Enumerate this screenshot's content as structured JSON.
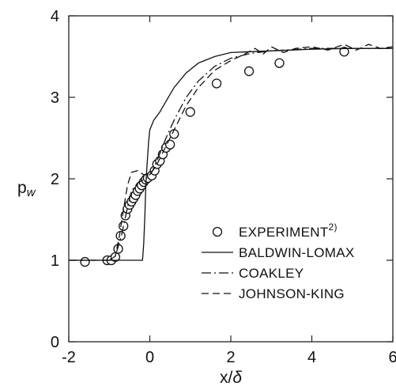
{
  "chart_data": {
    "type": "line",
    "xlabel": "x/δ",
    "ylabel": "p_w",
    "xlim": [
      -2,
      6
    ],
    "ylim": [
      0,
      4
    ],
    "x_ticks": [
      "-2",
      "0",
      "2",
      "4",
      "6"
    ],
    "y_ticks": [
      "0",
      "1",
      "2",
      "3",
      "4"
    ],
    "grid": false,
    "legend_position": "lower-right",
    "series": [
      {
        "name": "EXPERIMENT",
        "name_superscript": "2)",
        "style": "open-circle",
        "points": [
          [
            -1.6,
            0.98
          ],
          [
            -1.05,
            1.0
          ],
          [
            -0.95,
            1.0
          ],
          [
            -0.85,
            1.04
          ],
          [
            -0.78,
            1.14
          ],
          [
            -0.72,
            1.3
          ],
          [
            -0.65,
            1.42
          ],
          [
            -0.6,
            1.55
          ],
          [
            -0.55,
            1.63
          ],
          [
            -0.5,
            1.68
          ],
          [
            -0.45,
            1.72
          ],
          [
            -0.4,
            1.76
          ],
          [
            -0.35,
            1.8
          ],
          [
            -0.3,
            1.85
          ],
          [
            -0.25,
            1.88
          ],
          [
            -0.2,
            1.92
          ],
          [
            -0.15,
            1.96
          ],
          [
            -0.1,
            1.99
          ],
          [
            -0.05,
            2.01
          ],
          [
            0.05,
            2.04
          ],
          [
            0.12,
            2.1
          ],
          [
            0.18,
            2.18
          ],
          [
            0.25,
            2.22
          ],
          [
            0.32,
            2.3
          ],
          [
            0.4,
            2.38
          ],
          [
            0.5,
            2.42
          ],
          [
            0.6,
            2.55
          ],
          [
            1.0,
            2.82
          ],
          [
            1.65,
            3.17
          ],
          [
            2.45,
            3.32
          ],
          [
            3.2,
            3.42
          ],
          [
            4.8,
            3.56
          ]
        ]
      },
      {
        "name": "BALDWIN-LOMAX",
        "style": "solid",
        "points": [
          [
            -2,
            1.0
          ],
          [
            -1.0,
            1.0
          ],
          [
            -0.5,
            1.0
          ],
          [
            -0.18,
            1.0
          ],
          [
            -0.15,
            1.2
          ],
          [
            -0.12,
            1.55
          ],
          [
            -0.1,
            1.9
          ],
          [
            -0.07,
            2.15
          ],
          [
            -0.03,
            2.45
          ],
          [
            0.0,
            2.6
          ],
          [
            0.1,
            2.72
          ],
          [
            0.25,
            2.82
          ],
          [
            0.4,
            2.95
          ],
          [
            0.6,
            3.12
          ],
          [
            0.9,
            3.3
          ],
          [
            1.2,
            3.42
          ],
          [
            1.6,
            3.5
          ],
          [
            2.0,
            3.55
          ],
          [
            2.5,
            3.56
          ],
          [
            3.0,
            3.57
          ],
          [
            4.0,
            3.59
          ],
          [
            5.0,
            3.6
          ],
          [
            6.0,
            3.6
          ]
        ]
      },
      {
        "name": "COAKLEY",
        "style": "dash-dot",
        "points": [
          [
            -2,
            1.0
          ],
          [
            -1.0,
            1.0
          ],
          [
            -0.85,
            1.05
          ],
          [
            -0.7,
            1.3
          ],
          [
            -0.55,
            1.65
          ],
          [
            -0.45,
            1.85
          ],
          [
            -0.3,
            1.95
          ],
          [
            -0.1,
            2.0
          ],
          [
            0.05,
            2.08
          ],
          [
            0.2,
            2.25
          ],
          [
            0.4,
            2.5
          ],
          [
            0.6,
            2.72
          ],
          [
            0.9,
            3.0
          ],
          [
            1.2,
            3.2
          ],
          [
            1.6,
            3.38
          ],
          [
            2.0,
            3.48
          ],
          [
            2.5,
            3.54
          ],
          [
            3.0,
            3.57
          ],
          [
            4.0,
            3.6
          ],
          [
            5.0,
            3.6
          ],
          [
            6.0,
            3.6
          ]
        ]
      },
      {
        "name": "JOHNSON-KING",
        "style": "dashed",
        "points": [
          [
            -2,
            1.0
          ],
          [
            -1.0,
            1.0
          ],
          [
            -0.85,
            1.05
          ],
          [
            -0.75,
            1.3
          ],
          [
            -0.65,
            1.62
          ],
          [
            -0.55,
            1.92
          ],
          [
            -0.45,
            2.08
          ],
          [
            -0.3,
            2.1
          ],
          [
            -0.15,
            2.05
          ],
          [
            0.0,
            2.06
          ],
          [
            0.15,
            2.15
          ],
          [
            0.35,
            2.35
          ],
          [
            0.6,
            2.6
          ],
          [
            0.9,
            2.9
          ],
          [
            1.2,
            3.12
          ],
          [
            1.6,
            3.33
          ],
          [
            2.0,
            3.45
          ],
          [
            2.3,
            3.52
          ],
          [
            2.6,
            3.6
          ],
          [
            2.8,
            3.53
          ],
          [
            3.0,
            3.62
          ],
          [
            3.3,
            3.55
          ],
          [
            3.6,
            3.6
          ],
          [
            4.0,
            3.62
          ],
          [
            4.4,
            3.58
          ],
          [
            4.8,
            3.65
          ],
          [
            5.1,
            3.58
          ],
          [
            5.4,
            3.65
          ],
          [
            5.7,
            3.6
          ],
          [
            6.0,
            3.62
          ]
        ]
      }
    ]
  }
}
